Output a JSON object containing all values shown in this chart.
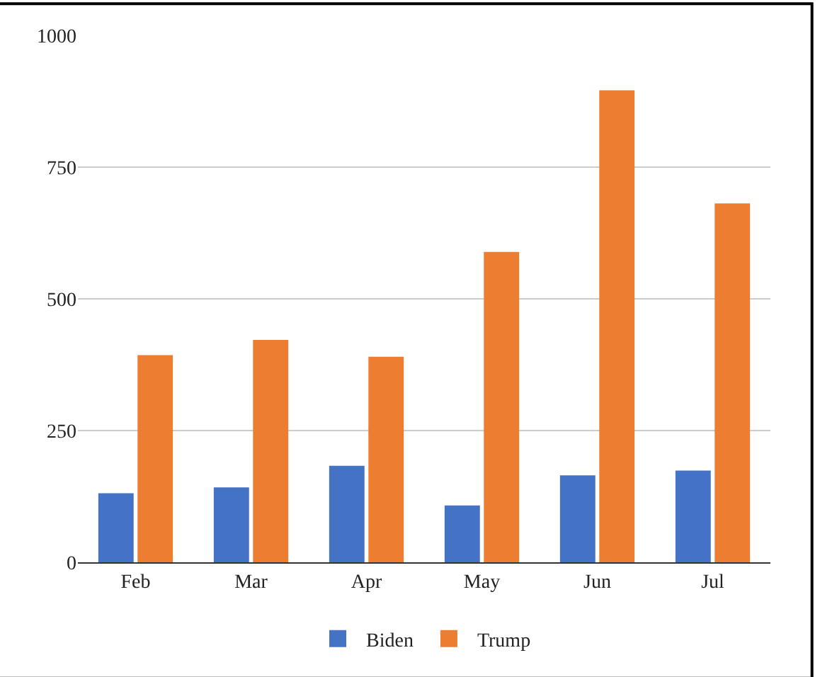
{
  "chart_data": {
    "type": "bar",
    "categories": [
      "Feb",
      "Mar",
      "Apr",
      "May",
      "Jun",
      "Jul"
    ],
    "series": [
      {
        "name": "Biden",
        "color": "#4472c4",
        "values": [
          131,
          142,
          183,
          108,
          165,
          174
        ]
      },
      {
        "name": "Trump",
        "color": "#ed7d31",
        "values": [
          393,
          422,
          390,
          589,
          896,
          681
        ]
      }
    ],
    "ylim": [
      0,
      1000
    ],
    "yticks": [
      0,
      250,
      500,
      750,
      1000
    ],
    "grid": "y",
    "legend": "bottom"
  }
}
